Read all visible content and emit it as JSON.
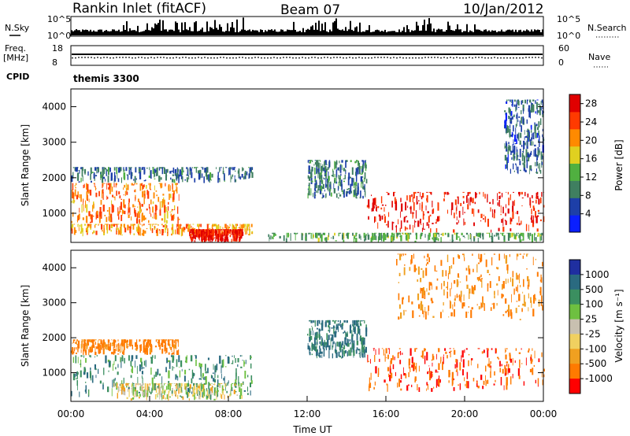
{
  "header": {
    "station": "Rankin Inlet (fitACF)",
    "beam": "Beam 07",
    "date": "10/Jan/2012"
  },
  "labels": {
    "nsky": "N.Sky",
    "nsearch": "N.Search",
    "freq": "Freq.",
    "freq_unit": "[MHz]",
    "cpid": "CPID",
    "nave": "Nave",
    "cpid_value": "themis 3300",
    "xlabel": "Time UT",
    "ylabel": "Slant Range [km]",
    "power_cbar_title": "Power [dB]",
    "vel_cbar_title": "Velocity  [m s⁻¹]",
    "noise_left_ticks": [
      "10^5",
      "10^0"
    ],
    "noise_right_ticks": [
      "10^5",
      "10^0"
    ],
    "freq_ticks": [
      "18",
      "8"
    ],
    "nave_ticks": [
      "60",
      "0"
    ]
  },
  "chart_data": [
    {
      "type": "line",
      "name": "noise",
      "ylim": [
        "10^0",
        "10^5"
      ],
      "x": [
        "00:00",
        "24:00"
      ],
      "series": [
        {
          "name": "N.Sky"
        },
        {
          "name": "N.Search"
        }
      ]
    },
    {
      "type": "line",
      "name": "freq-nave",
      "freq_ylim": [
        8,
        18
      ],
      "nave_ylim": [
        0,
        60
      ],
      "freq_value_mhz": 10.5,
      "nave_approx": 15
    },
    {
      "type": "heatmap",
      "name": "power",
      "xlabel": "Time UT",
      "ylabel": "Slant Range [km]",
      "ylim": [
        180,
        4500
      ],
      "yticks": [
        1000,
        2000,
        3000,
        4000
      ],
      "xticks": [
        "00:00",
        "04:00",
        "08:00",
        "12:00",
        "16:00",
        "20:00",
        "00:00"
      ],
      "colorbar": {
        "title": "Power [dB]",
        "ticks": [
          4,
          8,
          12,
          16,
          20,
          24,
          28
        ],
        "range": [
          0,
          30
        ],
        "colors": [
          "#0a1fff",
          "#1d3fa8",
          "#3f7f60",
          "#50b040",
          "#e0d020",
          "#ff8a00",
          "#ff3a00",
          "#e00000"
        ]
      },
      "regions": [
        {
          "t": [
            0.0,
            5.5
          ],
          "r": [
            700,
            1850
          ],
          "p": 22
        },
        {
          "t": [
            0.0,
            9.2
          ],
          "r": [
            350,
            700
          ],
          "p": 20
        },
        {
          "t": [
            6.0,
            8.7
          ],
          "r": [
            180,
            550
          ],
          "p": 27
        },
        {
          "t": [
            15.0,
            24.0
          ],
          "r": [
            450,
            1600
          ],
          "p": 27
        },
        {
          "t": [
            12.0,
            15.0
          ],
          "r": [
            1400,
            2500
          ],
          "p": 9
        },
        {
          "t": [
            0.0,
            9.2
          ],
          "r": [
            1850,
            2300
          ],
          "p": 8
        },
        {
          "t": [
            10.0,
            24.0
          ],
          "r": [
            180,
            450
          ],
          "p": 12
        },
        {
          "t": [
            22.0,
            24.0
          ],
          "r": [
            2100,
            4200
          ],
          "p": 7
        }
      ]
    },
    {
      "type": "heatmap",
      "name": "velocity",
      "xlabel": "Time UT",
      "ylabel": "Slant Range [km]",
      "ylim": [
        180,
        4500
      ],
      "yticks": [
        1000,
        2000,
        3000,
        4000
      ],
      "xticks": [
        "00:00",
        "04:00",
        "08:00",
        "12:00",
        "16:00",
        "20:00",
        "00:00"
      ],
      "colorbar": {
        "title": "Velocity  [m s⁻¹]",
        "ticks": [
          1000,
          500,
          100,
          25,
          -25,
          -100,
          -500,
          -1000
        ],
        "colors": [
          "#1f2fa0",
          "#2a6a80",
          "#3b8f60",
          "#6ec040",
          "#c8c0b0",
          "#f0d060",
          "#f0a020",
          "#ff7a00",
          "#ff0000"
        ]
      },
      "regions": [
        {
          "t": [
            0.0,
            5.5
          ],
          "r": [
            1500,
            1950
          ],
          "v": -350
        },
        {
          "t": [
            0.0,
            9.2
          ],
          "r": [
            300,
            1500
          ],
          "v": 200
        },
        {
          "t": [
            2.0,
            8.7
          ],
          "r": [
            200,
            700
          ],
          "v": 0
        },
        {
          "t": [
            15.0,
            24.0
          ],
          "r": [
            450,
            1700
          ],
          "v": -450
        },
        {
          "t": [
            12.0,
            15.0
          ],
          "r": [
            1400,
            2500
          ],
          "v": 300
        },
        {
          "t": [
            16.5,
            24.0
          ],
          "r": [
            2500,
            4400
          ],
          "v": -300
        }
      ]
    }
  ]
}
